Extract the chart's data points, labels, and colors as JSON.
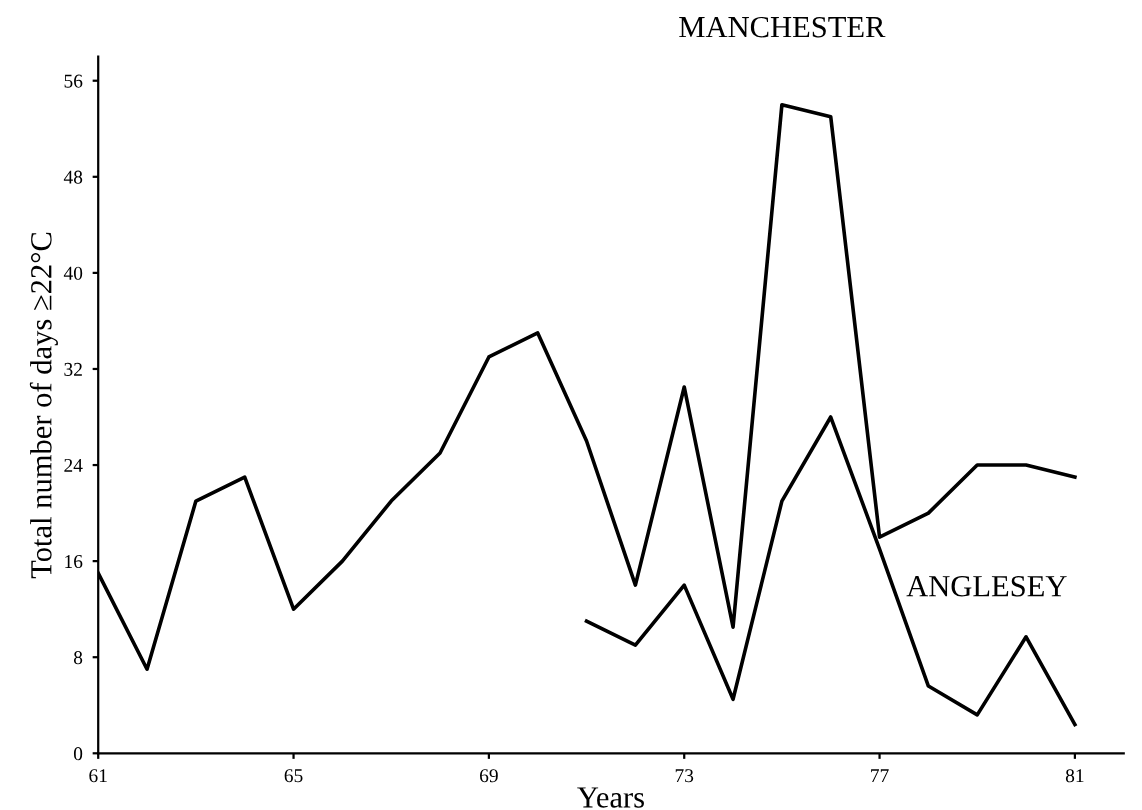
{
  "chart_data": {
    "type": "line",
    "xlabel": "Years",
    "ylabel": "Total number of days ≥22°C",
    "xlim": [
      61,
      82
    ],
    "xticks": [
      61,
      65,
      69,
      73,
      77,
      81
    ],
    "ylim": [
      0,
      58
    ],
    "yticks": [
      0,
      8,
      16,
      24,
      32,
      40,
      48,
      56
    ],
    "grid": false,
    "legend": false,
    "marker": "none",
    "line_style": "solid",
    "series": [
      {
        "name": "MANCHESTER",
        "color": "#000000",
        "x": [
          61,
          62,
          63,
          64,
          65,
          66,
          67,
          68,
          69,
          70,
          71,
          72,
          73,
          74,
          75,
          76,
          77,
          78,
          79,
          80,
          81
        ],
        "values": [
          15,
          7,
          21,
          23,
          12,
          16,
          21,
          25,
          33,
          35,
          26,
          14,
          30.5,
          10.5,
          54,
          53,
          18,
          20,
          24,
          24,
          23
        ]
      },
      {
        "name": "ANGLESEY",
        "color": "#000000",
        "x": [
          71,
          72,
          73,
          74,
          75,
          76,
          77,
          78,
          79,
          80,
          81
        ],
        "values": [
          11,
          9,
          14,
          4.5,
          21,
          28,
          17,
          5.6,
          3.2,
          9.7,
          2.4
        ]
      }
    ]
  }
}
